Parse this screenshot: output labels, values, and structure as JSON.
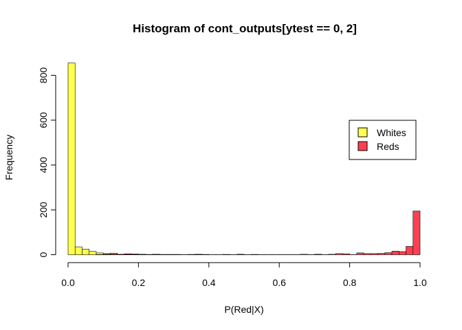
{
  "chart_data": {
    "type": "bar",
    "title": "Histogram of cont_outputs[ytest == 0, 2]",
    "xlabel": "P(Red|X)",
    "ylabel": "Frequency",
    "xlim": [
      0,
      1
    ],
    "ylim": [
      0,
      860
    ],
    "x_ticks": [
      "0.0",
      "0.2",
      "0.4",
      "0.6",
      "0.8",
      "1.0"
    ],
    "y_ticks": [
      "0",
      "200",
      "400",
      "600",
      "800"
    ],
    "grid": false,
    "legend_position": "right",
    "bin_width": 0.02,
    "series": [
      {
        "name": "Whites",
        "color": "#FFFF50",
        "bin_starts": [
          0.0,
          0.02,
          0.04,
          0.06,
          0.08,
          0.1,
          0.12,
          0.14,
          0.16,
          0.18,
          0.2,
          0.22,
          0.24,
          0.26,
          0.28,
          0.3,
          0.32,
          0.34,
          0.36,
          0.38,
          0.4,
          0.42,
          0.44,
          0.46,
          0.48,
          0.5,
          0.52,
          0.54,
          0.56,
          0.58,
          0.6,
          0.62,
          0.64,
          0.66,
          0.68,
          0.7,
          0.72,
          0.74,
          0.76,
          0.78,
          0.8
        ],
        "values": [
          855,
          35,
          25,
          15,
          8,
          5,
          7,
          2,
          4,
          3,
          2,
          1,
          2,
          1,
          1,
          1,
          0,
          1,
          1,
          1,
          0,
          0,
          1,
          0,
          1,
          0,
          1,
          0,
          0,
          0,
          0,
          0,
          0,
          0,
          0,
          1,
          0,
          0,
          0,
          0,
          0
        ]
      },
      {
        "name": "Reds",
        "color": "#FF4050",
        "bin_starts": [
          0.0,
          0.02,
          0.04,
          0.06,
          0.08,
          0.1,
          0.12,
          0.14,
          0.16,
          0.18,
          0.2,
          0.22,
          0.24,
          0.26,
          0.28,
          0.3,
          0.32,
          0.34,
          0.36,
          0.38,
          0.4,
          0.42,
          0.44,
          0.46,
          0.48,
          0.5,
          0.52,
          0.54,
          0.56,
          0.58,
          0.6,
          0.62,
          0.64,
          0.66,
          0.68,
          0.7,
          0.72,
          0.74,
          0.76,
          0.78,
          0.8,
          0.82,
          0.84,
          0.86,
          0.88,
          0.9,
          0.92,
          0.94,
          0.96,
          0.98
        ],
        "values": [
          0,
          0,
          0,
          0,
          1,
          2,
          3,
          2,
          3,
          2,
          2,
          1,
          2,
          1,
          1,
          1,
          1,
          1,
          2,
          1,
          1,
          1,
          1,
          1,
          2,
          1,
          1,
          1,
          1,
          1,
          1,
          1,
          1,
          2,
          1,
          2,
          1,
          2,
          5,
          4,
          1,
          8,
          5,
          5,
          6,
          9,
          16,
          14,
          37,
          195
        ]
      }
    ]
  }
}
